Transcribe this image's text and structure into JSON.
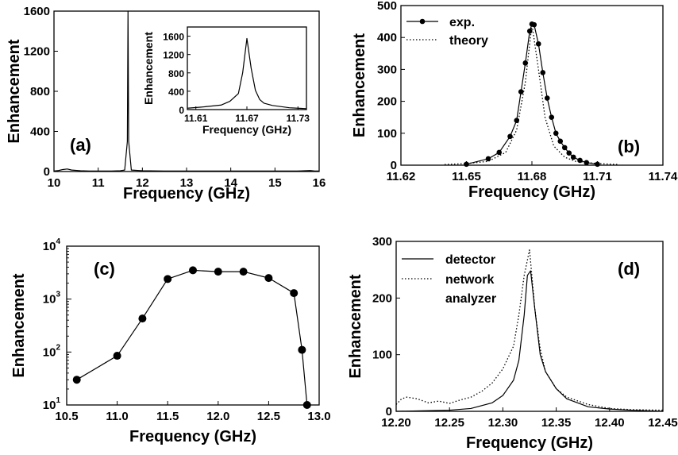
{
  "chart_data": [
    {
      "panel": "(a)",
      "type": "line",
      "xlabel": "Frequency (GHz)",
      "ylabel": "Enhancement",
      "xlim": [
        10,
        16
      ],
      "ylim": [
        0,
        1600
      ],
      "xticks": [
        "10",
        "11",
        "12",
        "13",
        "14",
        "15",
        "16"
      ],
      "yticks": [
        "0",
        "400",
        "800",
        "1200",
        "1600"
      ],
      "series": [
        {
          "x": [
            10.0,
            10.1,
            10.2,
            10.3,
            10.4,
            10.6,
            10.8,
            11.0,
            11.3,
            11.5,
            11.6,
            11.66,
            11.675,
            11.69,
            11.75,
            12.0,
            12.5,
            13.0,
            13.5,
            14.0,
            14.5,
            15.0,
            15.5,
            15.8,
            15.9,
            16.0
          ],
          "y": [
            5,
            10,
            20,
            25,
            15,
            8,
            5,
            5,
            5,
            8,
            15,
            300,
            1600,
            300,
            15,
            8,
            5,
            5,
            5,
            5,
            5,
            5,
            5,
            10,
            5,
            5
          ]
        }
      ],
      "inset": {
        "xlabel": "Frequency (GHz)",
        "ylabel": "Enhancement",
        "xlim": [
          11.6,
          11.74
        ],
        "ylim": [
          0,
          1800
        ],
        "xticks": [
          "11.61",
          "11.67",
          "11.73"
        ],
        "yticks": [
          "0",
          "400",
          "800",
          "1200",
          "1600"
        ],
        "series": [
          {
            "x": [
              11.6,
              11.62,
              11.64,
              11.65,
              11.66,
              11.665,
              11.67,
              11.675,
              11.68,
              11.685,
              11.69,
              11.7,
              11.72,
              11.74
            ],
            "y": [
              30,
              60,
              100,
              180,
              350,
              800,
              1550,
              900,
              420,
              220,
              140,
              90,
              40,
              20
            ]
          }
        ]
      }
    },
    {
      "panel": "(b)",
      "type": "line",
      "xlabel": "Frequency (GHz)",
      "ylabel": "Enhancement",
      "xlim": [
        11.62,
        11.74
      ],
      "ylim": [
        0,
        500
      ],
      "xticks": [
        "11.62",
        "11.65",
        "11.68",
        "11.71",
        "11.74"
      ],
      "yticks": [
        "0",
        "100",
        "200",
        "300",
        "400",
        "500"
      ],
      "legend": [
        "exp.",
        "theory"
      ],
      "series": [
        {
          "name": "exp.",
          "style": "solid-dots",
          "x": [
            11.65,
            11.66,
            11.665,
            11.67,
            11.673,
            11.675,
            11.677,
            11.679,
            11.68,
            11.681,
            11.683,
            11.685,
            11.687,
            11.689,
            11.691,
            11.693,
            11.695,
            11.697,
            11.699,
            11.702,
            11.705,
            11.71
          ],
          "y": [
            3,
            20,
            40,
            90,
            140,
            230,
            320,
            420,
            442,
            440,
            380,
            290,
            210,
            150,
            100,
            75,
            55,
            38,
            25,
            15,
            8,
            3
          ]
        },
        {
          "name": "theory",
          "style": "dotted",
          "x": [
            11.64,
            11.65,
            11.66,
            11.668,
            11.673,
            11.677,
            11.68,
            11.683,
            11.686,
            11.69,
            11.695,
            11.7,
            11.71,
            11.72
          ],
          "y": [
            2,
            5,
            12,
            40,
            110,
            260,
            442,
            300,
            150,
            60,
            25,
            12,
            5,
            2
          ]
        }
      ]
    },
    {
      "panel": "(c)",
      "type": "line",
      "xlabel": "Frequency (GHz)",
      "ylabel": "Enhancement",
      "yscale": "log",
      "xlim": [
        10.5,
        13.0
      ],
      "ylim": [
        10,
        10000
      ],
      "xticks": [
        "10.5",
        "11.0",
        "11.5",
        "12.0",
        "12.5",
        "13.0"
      ],
      "yticks": [
        {
          "base": "10",
          "exp": "1"
        },
        {
          "base": "10",
          "exp": "2"
        },
        {
          "base": "10",
          "exp": "3"
        },
        {
          "base": "10",
          "exp": "4"
        }
      ],
      "series": [
        {
          "style": "solid-dots",
          "x": [
            10.6,
            11.0,
            11.25,
            11.5,
            11.75,
            12.0,
            12.25,
            12.5,
            12.75,
            12.83,
            12.88
          ],
          "y": [
            30,
            85,
            430,
            2400,
            3500,
            3300,
            3300,
            2500,
            1300,
            110,
            10
          ]
        }
      ]
    },
    {
      "panel": "(d)",
      "type": "line",
      "xlabel": "Frequency (GHz)",
      "ylabel": "Enhancement",
      "xlim": [
        12.2,
        12.45
      ],
      "ylim": [
        0,
        300
      ],
      "xticks": [
        "12.20",
        "12.25",
        "12.30",
        "12.35",
        "12.40",
        "12.45"
      ],
      "yticks": [
        "0",
        "100",
        "200",
        "300"
      ],
      "legend": [
        "detector",
        "network analyzer"
      ],
      "series": [
        {
          "name": "detector",
          "style": "solid",
          "x": [
            12.2,
            12.25,
            12.27,
            12.29,
            12.3,
            12.31,
            12.315,
            12.32,
            12.323,
            12.326,
            12.33,
            12.335,
            12.34,
            12.35,
            12.36,
            12.38,
            12.4,
            12.42,
            12.45
          ],
          "y": [
            0,
            2,
            5,
            15,
            28,
            55,
            90,
            170,
            240,
            248,
            180,
            100,
            70,
            40,
            22,
            8,
            4,
            2,
            0
          ]
        },
        {
          "name": "network analyzer",
          "style": "dotted",
          "x": [
            12.2,
            12.205,
            12.21,
            12.22,
            12.23,
            12.24,
            12.25,
            12.26,
            12.27,
            12.28,
            12.29,
            12.3,
            12.305,
            12.31,
            12.315,
            12.32,
            12.325,
            12.33,
            12.335,
            12.34,
            12.35,
            12.36,
            12.38,
            12.4,
            12.42,
            12.45
          ],
          "y": [
            12,
            22,
            25,
            22,
            15,
            18,
            14,
            20,
            25,
            35,
            50,
            75,
            95,
            115,
            170,
            240,
            285,
            180,
            110,
            70,
            40,
            25,
            12,
            5,
            3,
            2
          ]
        }
      ]
    }
  ]
}
